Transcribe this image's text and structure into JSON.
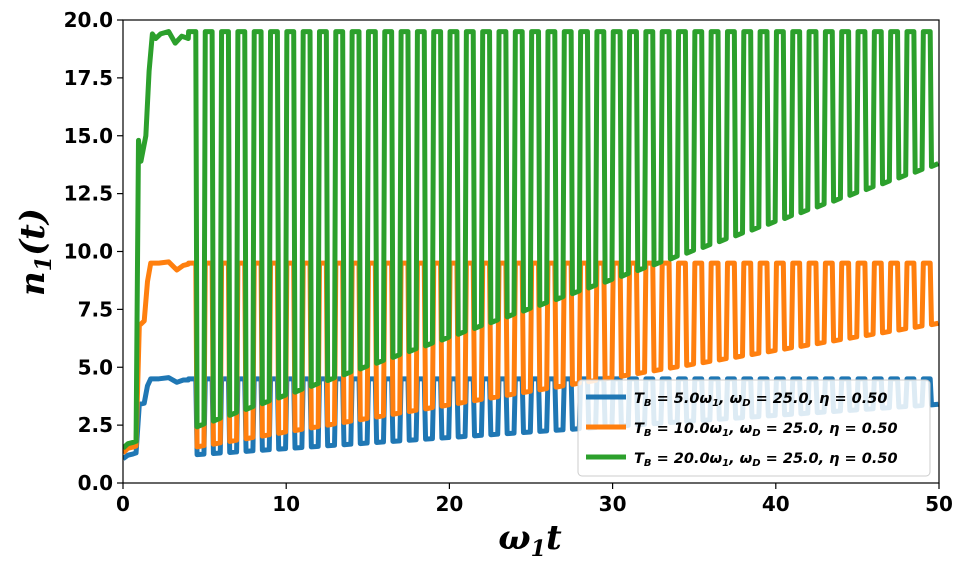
{
  "chart_data": {
    "type": "line",
    "title": "",
    "xlabel": {
      "base": "ω",
      "sub": "1",
      "tail": "t"
    },
    "ylabel": {
      "base": "n",
      "sub": "1",
      "tail": "(t)"
    },
    "xlim": [
      0,
      50
    ],
    "ylim": [
      0,
      20
    ],
    "xticks": [
      "0",
      "10",
      "20",
      "30",
      "40",
      "50"
    ],
    "yticks": [
      "0.0",
      "2.5",
      "5.0",
      "7.5",
      "10.0",
      "12.5",
      "15.0",
      "17.5",
      "20.0"
    ],
    "grid": false,
    "legend_position": "lower-right",
    "drive_period": 1.0,
    "series": [
      {
        "name": "T_B = 5.0ω_1, ω_D = 25.0, η = 0.50",
        "color": "#1f77b4",
        "high": 4.5,
        "low_start": 1.2,
        "low_end": 3.4,
        "transient": [
          [
            0.0,
            1.05
          ],
          [
            0.3,
            1.2
          ],
          [
            0.6,
            1.25
          ],
          [
            0.8,
            1.3
          ],
          [
            1.0,
            3.4
          ],
          [
            1.3,
            3.45
          ],
          [
            1.5,
            4.2
          ],
          [
            1.7,
            4.5
          ],
          [
            2.2,
            4.5
          ],
          [
            2.8,
            4.55
          ],
          [
            3.3,
            4.35
          ],
          [
            3.7,
            4.45
          ],
          [
            4.0,
            4.45
          ]
        ],
        "legend": {
          "t": "T",
          "tsub": "B",
          "rest1": " = 5.0ω",
          "rest1sub": "1",
          "rest2": ", ω",
          "rest2sub": "D",
          "rest3": " = 25.0, η = 0.50"
        }
      },
      {
        "name": "T_B = 10.0ω_1, ω_D = 25.0, η = 0.50",
        "color": "#ff7f0e",
        "high": 9.5,
        "low_start": 1.5,
        "low_end": 6.9,
        "transient": [
          [
            0.0,
            1.3
          ],
          [
            0.3,
            1.5
          ],
          [
            0.6,
            1.55
          ],
          [
            0.8,
            1.6
          ],
          [
            1.0,
            6.8
          ],
          [
            1.3,
            7.0
          ],
          [
            1.5,
            8.7
          ],
          [
            1.7,
            9.5
          ],
          [
            2.2,
            9.5
          ],
          [
            2.8,
            9.55
          ],
          [
            3.3,
            9.2
          ],
          [
            3.7,
            9.4
          ],
          [
            4.0,
            9.45
          ]
        ],
        "legend": {
          "t": "T",
          "tsub": "B",
          "rest1": " = 10.0ω",
          "rest1sub": "1",
          "rest2": ", ω",
          "rest2sub": "D",
          "rest3": " = 25.0, η = 0.50"
        }
      },
      {
        "name": "T_B = 20.0ω_1, ω_D = 25.0, η = 0.50",
        "color": "#2ca02c",
        "high": 19.5,
        "low_start": 2.3,
        "low_end": 13.8,
        "transient": [
          [
            0.0,
            1.5
          ],
          [
            0.3,
            1.7
          ],
          [
            0.6,
            1.75
          ],
          [
            0.8,
            1.8
          ],
          [
            0.95,
            14.8
          ],
          [
            1.1,
            13.9
          ],
          [
            1.4,
            15.0
          ],
          [
            1.6,
            17.8
          ],
          [
            1.8,
            19.4
          ],
          [
            2.0,
            19.2
          ],
          [
            2.3,
            19.4
          ],
          [
            2.8,
            19.5
          ],
          [
            3.2,
            19.0
          ],
          [
            3.6,
            19.3
          ],
          [
            4.0,
            19.2
          ]
        ],
        "legend": {
          "t": "T",
          "tsub": "B",
          "rest1": " = 20.0ω",
          "rest1sub": "1",
          "rest2": ", ω",
          "rest2sub": "D",
          "rest3": " = 25.0, η = 0.50"
        }
      }
    ]
  }
}
